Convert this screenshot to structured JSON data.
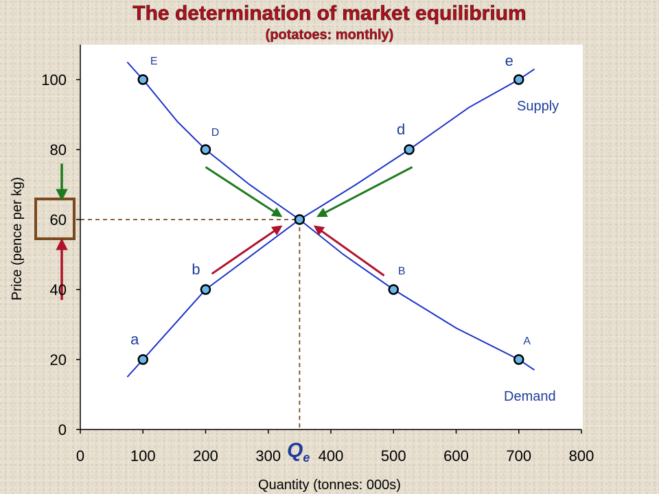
{
  "chart_data": {
    "type": "line",
    "title": "The determination of market equilibrium",
    "subtitle": "(potatoes: monthly)",
    "xlabel": "Quantity (tonnes: 000s)",
    "ylabel": "Price (pence per kg)",
    "xlim": [
      0,
      800
    ],
    "ylim": [
      0,
      100
    ],
    "xticks": [
      0,
      100,
      200,
      300,
      400,
      500,
      600,
      700,
      800
    ],
    "yticks": [
      0,
      20,
      40,
      60,
      80,
      100
    ],
    "equilibrium": {
      "x": 350,
      "y": 60,
      "label": "Q",
      "subscript": "e"
    },
    "series": [
      {
        "name": "Supply",
        "color": "#1a33cc",
        "points": [
          {
            "label": "a",
            "x": 100,
            "y": 20
          },
          {
            "label": "b",
            "x": 200,
            "y": 40
          },
          {
            "label": "d",
            "x": 525,
            "y": 80
          },
          {
            "label": "e",
            "x": 700,
            "y": 100
          }
        ],
        "curve": [
          [
            75,
            15
          ],
          [
            100,
            20
          ],
          [
            160,
            32
          ],
          [
            200,
            40
          ],
          [
            260,
            48
          ],
          [
            350,
            60
          ],
          [
            440,
            70
          ],
          [
            525,
            80
          ],
          [
            620,
            92
          ],
          [
            700,
            100
          ],
          [
            725,
            103
          ]
        ]
      },
      {
        "name": "Demand",
        "color": "#1a33cc",
        "points": [
          {
            "label": "E",
            "x": 100,
            "y": 100
          },
          {
            "label": "D",
            "x": 200,
            "y": 80
          },
          {
            "label": "B",
            "x": 500,
            "y": 40
          },
          {
            "label": "A",
            "x": 700,
            "y": 20
          }
        ],
        "curve": [
          [
            75,
            105
          ],
          [
            100,
            100
          ],
          [
            155,
            88
          ],
          [
            200,
            80
          ],
          [
            270,
            70
          ],
          [
            350,
            60
          ],
          [
            420,
            50
          ],
          [
            500,
            40
          ],
          [
            600,
            29
          ],
          [
            700,
            20
          ],
          [
            725,
            17
          ]
        ]
      }
    ],
    "arrows": [
      {
        "color": "#1f7a1f",
        "from": [
          200,
          75
        ],
        "to": [
          320,
          61
        ]
      },
      {
        "color": "#1f7a1f",
        "from": [
          530,
          75
        ],
        "to": [
          380,
          61
        ]
      },
      {
        "color": "#b0122a",
        "from": [
          210,
          44.5
        ],
        "to": [
          320,
          58
        ]
      },
      {
        "color": "#b0122a",
        "from": [
          485,
          44
        ],
        "to": [
          375,
          58
        ]
      }
    ],
    "price_arrows": [
      {
        "color": "#1f7a1f",
        "direction": "down",
        "from": 76,
        "to": 66
      },
      {
        "color": "#b0122a",
        "direction": "up",
        "from": 37,
        "to": 54
      }
    ],
    "price_box_color": "#7a4a1e",
    "point_fill": "#6ab8ea",
    "guide_color": "#7a4a1e",
    "plot_bg": "#ffffff",
    "title_color": "#b00f1e"
  }
}
